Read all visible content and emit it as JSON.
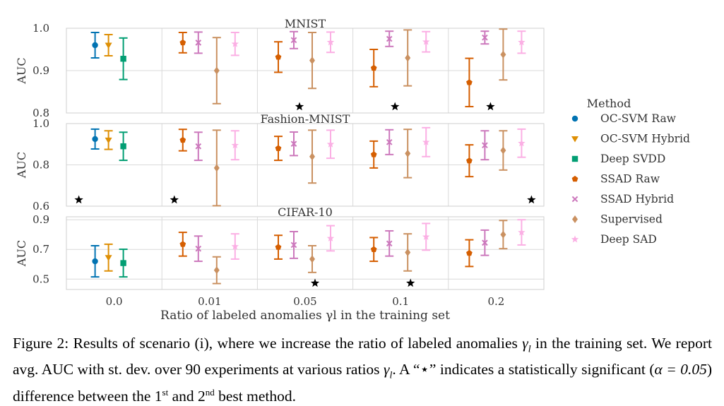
{
  "chart_data": {
    "type": "errorbar",
    "xlabel": "Ratio of labeled anomalies γl in the training set",
    "ylabel": "AUC",
    "categories": [
      "0.0",
      "0.01",
      "0.05",
      "0.1",
      "0.2"
    ],
    "legend": {
      "title": "Method",
      "placement": "right",
      "methods": [
        {
          "name": "OC-SVM Raw",
          "color": "#0173b2",
          "marker": "circle"
        },
        {
          "name": "OC-SVM Hybrid",
          "color": "#de8f05",
          "marker": "triangle-down"
        },
        {
          "name": "Deep SVDD",
          "color": "#029e73",
          "marker": "square"
        },
        {
          "name": "SSAD Raw",
          "color": "#d55e00",
          "marker": "pentagon"
        },
        {
          "name": "SSAD Hybrid",
          "color": "#cc78bc",
          "marker": "x"
        },
        {
          "name": "Supervised",
          "color": "#ca9161",
          "marker": "diamond"
        },
        {
          "name": "Deep SAD",
          "color": "#fbafe4",
          "marker": "star"
        }
      ]
    },
    "panels": [
      {
        "title": "MNIST",
        "ylim": [
          0.8,
          1.0
        ],
        "yticks": [
          "0.8",
          "0.9",
          "1.0"
        ],
        "groups": [
          {
            "category": "0.0",
            "points": [
              {
                "method": "OC-SVM Raw",
                "mean": 0.96,
                "sd": 0.03
              },
              {
                "method": "OC-SVM Hybrid",
                "mean": 0.96,
                "sd": 0.025
              },
              {
                "method": "Deep SVDD",
                "mean": 0.928,
                "sd": 0.049
              }
            ]
          },
          {
            "category": "0.01",
            "points": [
              {
                "method": "SSAD Raw",
                "mean": 0.966,
                "sd": 0.024
              },
              {
                "method": "SSAD Hybrid",
                "mean": 0.966,
                "sd": 0.025
              },
              {
                "method": "Supervised",
                "mean": 0.9,
                "sd": 0.078
              },
              {
                "method": "Deep SAD",
                "mean": 0.963,
                "sd": 0.027
              }
            ]
          },
          {
            "category": "0.05",
            "points": [
              {
                "method": "SSAD Raw",
                "mean": 0.932,
                "sd": 0.036
              },
              {
                "method": "SSAD Hybrid",
                "mean": 0.972,
                "sd": 0.02
              },
              {
                "method": "Supervised",
                "mean": 0.924,
                "sd": 0.066
              },
              {
                "method": "Deep SAD",
                "mean": 0.967,
                "sd": 0.024
              }
            ]
          },
          {
            "category": "0.1",
            "points": [
              {
                "method": "SSAD Raw",
                "mean": 0.906,
                "sd": 0.044
              },
              {
                "method": "SSAD Hybrid",
                "mean": 0.975,
                "sd": 0.018
              },
              {
                "method": "Supervised",
                "mean": 0.93,
                "sd": 0.066
              },
              {
                "method": "Deep SAD",
                "mean": 0.968,
                "sd": 0.024
              }
            ]
          },
          {
            "category": "0.2",
            "points": [
              {
                "method": "SSAD Raw",
                "mean": 0.872,
                "sd": 0.057
              },
              {
                "method": "SSAD Hybrid",
                "mean": 0.978,
                "sd": 0.015
              },
              {
                "method": "Supervised",
                "mean": 0.938,
                "sd": 0.06
              },
              {
                "method": "Deep SAD",
                "mean": 0.967,
                "sd": 0.026
              }
            ]
          }
        ],
        "significance": [
          "0.05",
          "0.1",
          "0.2"
        ]
      },
      {
        "title": "Fashion-MNIST",
        "ylim": [
          0.6,
          1.0
        ],
        "yticks": [
          "0.6",
          "0.8",
          "1.0"
        ],
        "groups": [
          {
            "category": "0.0",
            "points": [
              {
                "method": "OC-SVM Raw",
                "mean": 0.925,
                "sd": 0.048
              },
              {
                "method": "OC-SVM Hybrid",
                "mean": 0.92,
                "sd": 0.045
              },
              {
                "method": "Deep SVDD",
                "mean": 0.89,
                "sd": 0.068
              }
            ]
          },
          {
            "category": "0.01",
            "points": [
              {
                "method": "SSAD Raw",
                "mean": 0.92,
                "sd": 0.052
              },
              {
                "method": "SSAD Hybrid",
                "mean": 0.89,
                "sd": 0.068
              },
              {
                "method": "Supervised",
                "mean": 0.785,
                "sd": 0.183
              },
              {
                "method": "Deep SAD",
                "mean": 0.895,
                "sd": 0.07
              }
            ]
          },
          {
            "category": "0.05",
            "points": [
              {
                "method": "SSAD Raw",
                "mean": 0.88,
                "sd": 0.058
              },
              {
                "method": "SSAD Hybrid",
                "mean": 0.902,
                "sd": 0.057
              },
              {
                "method": "Supervised",
                "mean": 0.84,
                "sd": 0.128
              },
              {
                "method": "Deep SAD",
                "mean": 0.9,
                "sd": 0.068
              }
            ]
          },
          {
            "category": "0.1",
            "points": [
              {
                "method": "SSAD Raw",
                "mean": 0.85,
                "sd": 0.065
              },
              {
                "method": "SSAD Hybrid",
                "mean": 0.91,
                "sd": 0.06
              },
              {
                "method": "Supervised",
                "mean": 0.855,
                "sd": 0.117
              },
              {
                "method": "Deep SAD",
                "mean": 0.91,
                "sd": 0.07
              }
            ]
          },
          {
            "category": "0.2",
            "points": [
              {
                "method": "SSAD Raw",
                "mean": 0.82,
                "sd": 0.077
              },
              {
                "method": "SSAD Hybrid",
                "mean": 0.895,
                "sd": 0.07
              },
              {
                "method": "Supervised",
                "mean": 0.87,
                "sd": 0.095
              },
              {
                "method": "Deep SAD",
                "mean": 0.905,
                "sd": 0.068
              }
            ]
          }
        ],
        "significance": [
          "0.0",
          "0.01",
          "0.2"
        ]
      },
      {
        "title": "CIFAR-10",
        "ylim": [
          0.43,
          0.92
        ],
        "yticks": [
          "0.5",
          "0.7",
          "0.9"
        ],
        "groups": [
          {
            "category": "0.0",
            "points": [
              {
                "method": "OC-SVM Raw",
                "mean": 0.62,
                "sd": 0.105
              },
              {
                "method": "OC-SVM Hybrid",
                "mean": 0.645,
                "sd": 0.09
              },
              {
                "method": "Deep SVDD",
                "mean": 0.608,
                "sd": 0.093
              }
            ]
          },
          {
            "category": "0.01",
            "points": [
              {
                "method": "SSAD Raw",
                "mean": 0.735,
                "sd": 0.08
              },
              {
                "method": "SSAD Hybrid",
                "mean": 0.705,
                "sd": 0.085
              },
              {
                "method": "Supervised",
                "mean": 0.56,
                "sd": 0.09
              },
              {
                "method": "Deep SAD",
                "mean": 0.72,
                "sd": 0.085
              }
            ]
          },
          {
            "category": "0.05",
            "points": [
              {
                "method": "SSAD Raw",
                "mean": 0.715,
                "sd": 0.08
              },
              {
                "method": "SSAD Hybrid",
                "mean": 0.73,
                "sd": 0.09
              },
              {
                "method": "Supervised",
                "mean": 0.635,
                "sd": 0.09
              },
              {
                "method": "Deep SAD",
                "mean": 0.775,
                "sd": 0.085
              }
            ]
          },
          {
            "category": "0.1",
            "points": [
              {
                "method": "SSAD Raw",
                "mean": 0.7,
                "sd": 0.08
              },
              {
                "method": "SSAD Hybrid",
                "mean": 0.74,
                "sd": 0.085
              },
              {
                "method": "Supervised",
                "mean": 0.68,
                "sd": 0.125
              },
              {
                "method": "Deep SAD",
                "mean": 0.785,
                "sd": 0.09
              }
            ]
          },
          {
            "category": "0.2",
            "points": [
              {
                "method": "SSAD Raw",
                "mean": 0.675,
                "sd": 0.09
              },
              {
                "method": "SSAD Hybrid",
                "mean": 0.745,
                "sd": 0.085
              },
              {
                "method": "Supervised",
                "mean": 0.8,
                "sd": 0.095
              },
              {
                "method": "Deep SAD",
                "mean": 0.815,
                "sd": 0.085
              }
            ]
          }
        ],
        "significance": [
          "0.05",
          "0.1"
        ]
      }
    ]
  },
  "caption": {
    "prefix": "Figure 2: Results of scenario (i), where we increase the ratio of labeled anomalies ",
    "gamma": "γ",
    "gamma_sub": "l",
    "middle": " in the training set. We report avg. AUC with st. dev. over 90 experiments at various ratios ",
    "middle2": ". A “",
    "star": "⋆",
    "after_star": "” indicates a statistically significant (",
    "alpha": "α = 0.05",
    "after_alpha": ") difference between the 1",
    "sup1": "st",
    "and_text": " and 2",
    "sup2": "nd",
    "end": " best method."
  }
}
